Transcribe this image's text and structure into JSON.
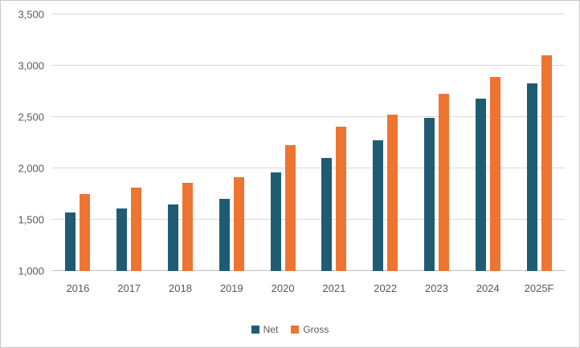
{
  "chart_data": {
    "type": "bar",
    "title": "",
    "xlabel": "",
    "ylabel": "",
    "categories": [
      "2016",
      "2017",
      "2018",
      "2019",
      "2020",
      "2021",
      "2022",
      "2023",
      "2024",
      "2025F"
    ],
    "series": [
      {
        "name": "Net",
        "color": "#1f5c73",
        "values": [
          1570,
          1610,
          1650,
          1700,
          1960,
          2100,
          2270,
          2490,
          2680,
          2830
        ]
      },
      {
        "name": "Gross",
        "color": "#ed7431",
        "values": [
          1750,
          1810,
          1860,
          1915,
          2230,
          2410,
          2520,
          2730,
          2890,
          3100
        ]
      }
    ],
    "ylim": [
      1000,
      3500
    ],
    "ytick_step": 500,
    "ytick_labels": [
      "1,000",
      "1,500",
      "2,000",
      "2,500",
      "3,000",
      "3,500"
    ],
    "grid": true,
    "legend_position": "bottom"
  },
  "colors": {
    "net": "#1f5c73",
    "gross": "#ed7431",
    "gridline": "#d9d9d9",
    "axis_line": "#bfbfbf",
    "text": "#595959",
    "border": "#c8c8c8",
    "background": "#ffffff"
  }
}
